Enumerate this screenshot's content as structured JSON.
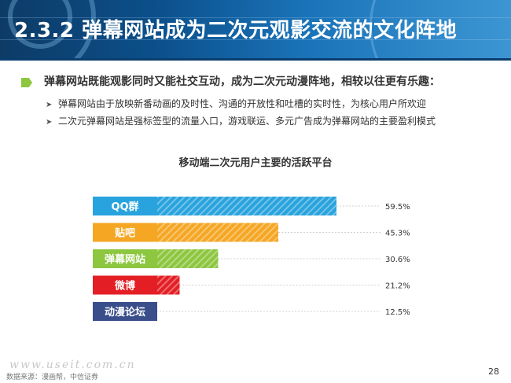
{
  "header": {
    "title": "2.3.2 弹幕网站成为二次元观影交流的文化阵地"
  },
  "content": {
    "lead": "弹幕网站既能观影同时又能社交互动，成为二次元动漫阵地，相较以往更有乐趣：",
    "bullets": [
      "弹幕网站由于放映新番动画的及时性、沟通的开放性和吐槽的实时性，为核心用户所欢迎",
      "二次元弹幕网站是强标签型的流量入口，游戏联运、多元广告成为弹幕网站的主要盈利模式"
    ]
  },
  "chart_data": {
    "type": "bar",
    "orientation": "horizontal",
    "title": "移动端二次元用户主要的活跃平台",
    "categories": [
      "QQ群",
      "贴吧",
      "弹幕网站",
      "微博",
      "动漫论坛"
    ],
    "values": [
      59.5,
      45.3,
      30.6,
      21.2,
      12.5
    ],
    "value_labels": [
      "59.5%",
      "45.3%",
      "30.6%",
      "21.2%",
      "12.5%"
    ],
    "colors": [
      "#29a3dd",
      "#f5a623",
      "#8dc63f",
      "#e31e24",
      "#3a4e8c"
    ],
    "xlim": [
      0,
      60
    ],
    "grid": false,
    "legend": "none"
  },
  "footer": {
    "source": "数据来源：漫画帮，中信证券",
    "watermark": "www.useit.com.cn",
    "page_number": "28"
  }
}
